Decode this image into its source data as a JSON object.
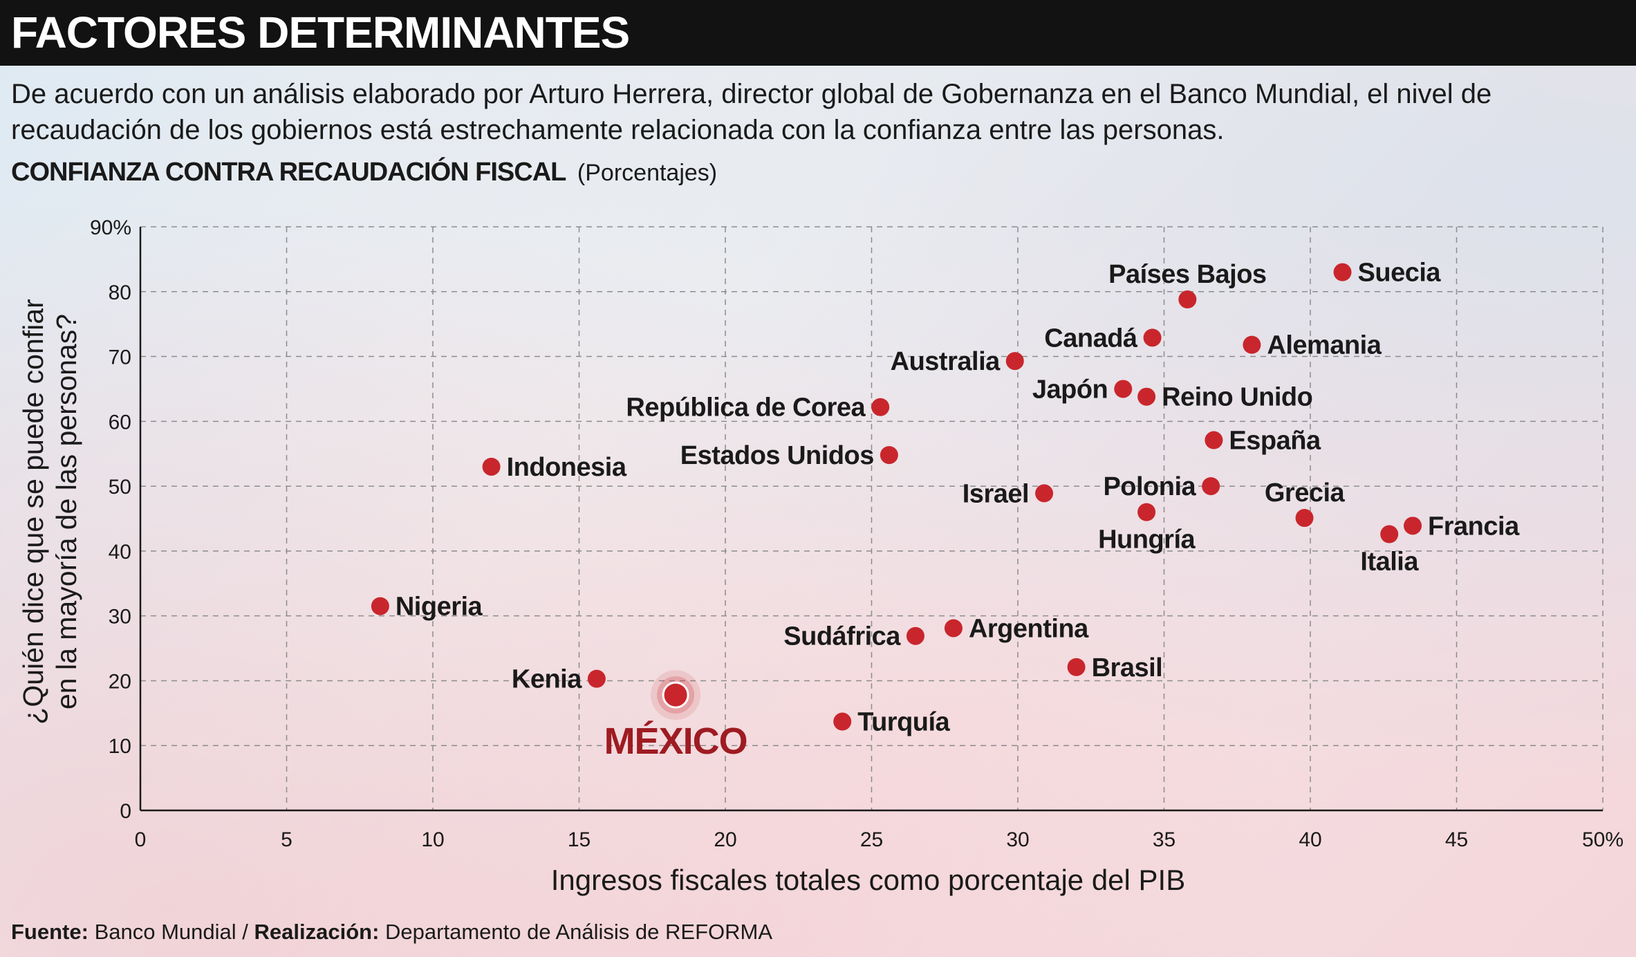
{
  "header": {
    "title": "FACTORES DETERMINANTES",
    "intro": "De acuerdo con un análisis elaborado por Arturo Herrera, director global de Gobernanza en el Banco Mundial, el nivel de recaudación de los gobiernos está estrechamente relacionada con la confianza entre las personas.",
    "chart_title": "CONFIANZA CONTRA RECAUDACIÓN FISCAL",
    "chart_unit": "(Porcentajes)"
  },
  "footer": {
    "source_label": "Fuente:",
    "source_value": "Banco Mundial",
    "separator": "/",
    "credit_label": "Realización:",
    "credit_value": "Departamento de Análisis de REFORMA"
  },
  "colors": {
    "point": "#c8262c",
    "highlight_text": "#9e1b22",
    "grid": "#8c8c8c",
    "axis": "#1a1a1a",
    "title_bar": "#121212"
  },
  "chart_data": {
    "type": "scatter",
    "title": "CONFIANZA CONTRA RECAUDACIÓN FISCAL",
    "xlabel": "Ingresos fiscales totales como porcentaje del PIB",
    "ylabel": "¿Quién dice que se puede confiar en la mayoría de las personas?",
    "ylabel_lines": [
      "¿Quién dice que se puede confiar",
      "en la mayoría de las personas?"
    ],
    "xlim": [
      0,
      50
    ],
    "ylim": [
      0,
      90
    ],
    "xticks": [
      "0",
      "5",
      "10",
      "15",
      "20",
      "25",
      "30",
      "35",
      "40",
      "45",
      "50%"
    ],
    "yticks": [
      "0",
      "10",
      "20",
      "30",
      "40",
      "50",
      "60",
      "70",
      "80",
      "90%"
    ],
    "grid": true,
    "points": [
      {
        "label": "Nigeria",
        "x": 8.2,
        "y": 31.5,
        "pos": "right"
      },
      {
        "label": "Indonesia",
        "x": 12.0,
        "y": 53.0,
        "pos": "right"
      },
      {
        "label": "Kenia",
        "x": 15.6,
        "y": 20.3,
        "pos": "left"
      },
      {
        "label": "MÉXICO",
        "x": 18.3,
        "y": 17.8,
        "pos": "below",
        "highlight": true
      },
      {
        "label": "Turquía",
        "x": 24.0,
        "y": 13.7,
        "pos": "right"
      },
      {
        "label": "República de Corea",
        "x": 25.3,
        "y": 62.2,
        "pos": "left"
      },
      {
        "label": "Estados Unidos",
        "x": 25.6,
        "y": 54.8,
        "pos": "left"
      },
      {
        "label": "Sudáfrica",
        "x": 26.5,
        "y": 26.9,
        "pos": "left"
      },
      {
        "label": "Argentina",
        "x": 27.8,
        "y": 28.1,
        "pos": "right"
      },
      {
        "label": "Australia",
        "x": 29.9,
        "y": 69.3,
        "pos": "left"
      },
      {
        "label": "Israel",
        "x": 30.9,
        "y": 48.9,
        "pos": "left"
      },
      {
        "label": "Brasil",
        "x": 32.0,
        "y": 22.1,
        "pos": "right"
      },
      {
        "label": "Japón",
        "x": 33.6,
        "y": 65.0,
        "pos": "left"
      },
      {
        "label": "Canadá",
        "x": 34.6,
        "y": 72.9,
        "pos": "left"
      },
      {
        "label": "Reino Unido",
        "x": 34.4,
        "y": 63.8,
        "pos": "right"
      },
      {
        "label": "Hungría",
        "x": 34.4,
        "y": 46.0,
        "pos": "below"
      },
      {
        "label": "Países Bajos",
        "x": 35.8,
        "y": 78.8,
        "pos": "above"
      },
      {
        "label": "Polonia",
        "x": 36.6,
        "y": 50.0,
        "pos": "left"
      },
      {
        "label": "España",
        "x": 36.7,
        "y": 57.1,
        "pos": "right"
      },
      {
        "label": "Alemania",
        "x": 38.0,
        "y": 71.8,
        "pos": "right"
      },
      {
        "label": "Grecia",
        "x": 39.8,
        "y": 45.1,
        "pos": "above"
      },
      {
        "label": "Suecia",
        "x": 41.1,
        "y": 83.0,
        "pos": "right"
      },
      {
        "label": "Italia",
        "x": 42.7,
        "y": 42.6,
        "pos": "below"
      },
      {
        "label": "Francia",
        "x": 43.5,
        "y": 43.9,
        "pos": "right"
      }
    ]
  }
}
